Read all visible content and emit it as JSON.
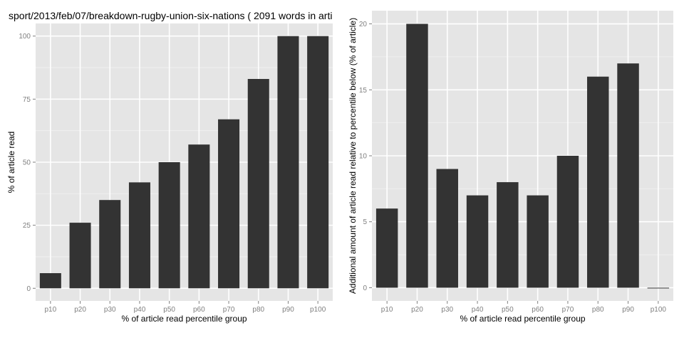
{
  "chart_data": [
    {
      "type": "bar",
      "title": "sport/2013/feb/07/breakdown-rugby-union-six-nations ( 2091 words in arti",
      "xlabel": "% of article read percentile group",
      "ylabel": "% of article read",
      "categories": [
        "p10",
        "p20",
        "p30",
        "p40",
        "p50",
        "p60",
        "p70",
        "p80",
        "p90",
        "p100"
      ],
      "values": [
        6,
        26,
        35,
        42,
        50,
        57,
        67,
        83,
        100,
        100
      ],
      "ylim": [
        -5,
        105
      ],
      "yticks": [
        "0",
        "25",
        "50",
        "75",
        "100"
      ],
      "ytick_values": [
        0,
        25,
        50,
        75,
        100
      ],
      "grid": true
    },
    {
      "type": "bar",
      "title": "",
      "xlabel": "% of article read percentile group",
      "ylabel": "Additional amount of article read relative to percentile below (% of article)",
      "categories": [
        "p10",
        "p20",
        "p30",
        "p40",
        "p50",
        "p60",
        "p70",
        "p80",
        "p90",
        "p100"
      ],
      "values": [
        6,
        20,
        9,
        7,
        8,
        7,
        10,
        16,
        17,
        0
      ],
      "ylim": [
        -1,
        21
      ],
      "yticks": [
        "0",
        "5",
        "10",
        "15",
        "20"
      ],
      "ytick_values": [
        0,
        5,
        10,
        15,
        20
      ],
      "grid": true
    }
  ],
  "colors": {
    "panel_bg": "#e5e5e5",
    "grid_major": "#ffffff",
    "grid_minor": "#f2f2f2",
    "bar_fill": "#333333",
    "tick_text": "#7f7f7f",
    "label_text": "#000000"
  }
}
